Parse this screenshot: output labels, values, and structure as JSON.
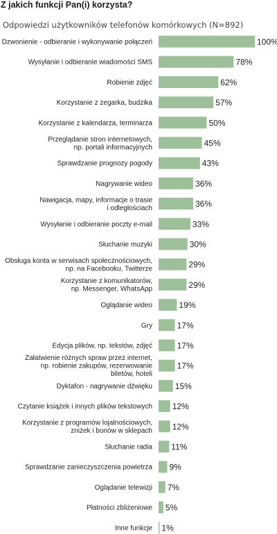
{
  "chart_data": {
    "type": "bar",
    "orientation": "horizontal",
    "title": "Z jakich funkcji Pan(i) korzysta?",
    "subtitle": "Odpowiedzi użytkowników telefonów komórkowych (N=892)",
    "bar_color": "#9dc09a",
    "xlim": [
      0,
      100
    ],
    "grid": false,
    "value_suffix": "%",
    "categories": [
      [
        "Dzwonienie - odbieranie i wykonywanie połączeń"
      ],
      [
        "Wysyłanie i odbieranie wiadomości SMS"
      ],
      [
        "Robienie zdjęć"
      ],
      [
        "Korzystanie z zegarka, budzika"
      ],
      [
        "Korzystanie z kalendarza, terminarza"
      ],
      [
        "Przeglądanie stron internetowych,",
        "np. portali informacyjnych"
      ],
      [
        "Sprawdzanie prognozy pogody"
      ],
      [
        "Nagrywanie wideo"
      ],
      [
        "Nawigacja, mapy, informacje o trasie",
        "i odległościach"
      ],
      [
        "Wysyłanie i odbieranie poczty e-mail"
      ],
      [
        "Słuchanie muzyki"
      ],
      [
        "Obsługa konta w serwisach społecznościowych,",
        "np. na Facebooku, Twitterze"
      ],
      [
        "Korzystanie z komunikatorów,",
        "np. Messenger, WhatsApp"
      ],
      [
        "Oglądanie wideo"
      ],
      [
        "Gry"
      ],
      [
        "Edycja plików, np. tekstów, zdjęć"
      ],
      [
        "Załatwienie różnych spraw przez internet,",
        "np. robienie zakupów, rezerwowanie",
        "biletów, hoteli"
      ],
      [
        "Dyktafon - nagrywanie dźwięku"
      ],
      [
        "Czytanie książek i innych plików tekstowych"
      ],
      [
        "Korzystanie z programów lojalnościowych,",
        "zniżek i bonów w sklepach"
      ],
      [
        "Słuchanie radia"
      ],
      [
        "Sprawdzanie zanieczyszczenia powietrza"
      ],
      [
        "Oglądanie telewizji"
      ],
      [
        "Płatności zbliżeniowe"
      ],
      [
        "Inne funkcje"
      ]
    ],
    "values": [
      100,
      78,
      62,
      57,
      50,
      45,
      43,
      36,
      36,
      33,
      30,
      29,
      29,
      19,
      17,
      17,
      17,
      15,
      12,
      12,
      11,
      9,
      7,
      5,
      1
    ]
  }
}
